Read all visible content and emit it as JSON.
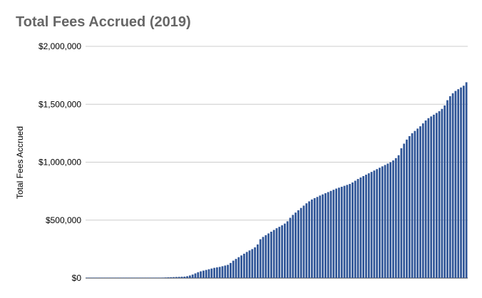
{
  "chart_data": {
    "type": "bar",
    "title": "Total Fees Accrued (2019)",
    "xlabel": "",
    "ylabel": "Total Fees Accrued",
    "ylim": [
      0,
      2000000
    ],
    "yticks": [
      {
        "value": 0,
        "label": "$0"
      },
      {
        "value": 500000,
        "label": "$500,000"
      },
      {
        "value": 1000000,
        "label": "$1,000,000"
      },
      {
        "value": 1500000,
        "label": "$1,500,000"
      },
      {
        "value": 2000000,
        "label": "$2,000,000"
      }
    ],
    "grid": true,
    "legend": "none",
    "bar_color": "#2f5597",
    "grid_color": "#cccccc",
    "values": [
      0,
      0,
      0,
      0,
      0,
      0,
      0,
      0,
      0,
      0,
      0,
      0,
      0,
      0,
      0,
      0,
      0,
      0,
      0,
      0,
      0,
      0,
      0,
      0,
      0,
      2000,
      2500,
      3000,
      4000,
      5000,
      6000,
      7000,
      8000,
      9000,
      10000,
      11000,
      12000,
      16000,
      22000,
      30000,
      40000,
      50000,
      58000,
      64000,
      70000,
      76000,
      82000,
      88000,
      92000,
      96000,
      102000,
      108000,
      114000,
      130000,
      150000,
      165000,
      180000,
      195000,
      210000,
      225000,
      238000,
      250000,
      265000,
      290000,
      335000,
      355000,
      370000,
      385000,
      400000,
      415000,
      430000,
      442000,
      455000,
      470000,
      490000,
      520000,
      545000,
      565000,
      585000,
      605000,
      625000,
      645000,
      662000,
      678000,
      690000,
      700000,
      712000,
      722000,
      732000,
      742000,
      752000,
      762000,
      772000,
      780000,
      788000,
      796000,
      804000,
      812000,
      825000,
      840000,
      855000,
      868000,
      880000,
      892000,
      904000,
      916000,
      928000,
      940000,
      952000,
      964000,
      976000,
      988000,
      1000000,
      1015000,
      1035000,
      1060000,
      1120000,
      1160000,
      1195000,
      1225000,
      1250000,
      1270000,
      1290000,
      1310000,
      1335000,
      1360000,
      1380000,
      1395000,
      1410000,
      1425000,
      1440000,
      1460000,
      1490000,
      1535000,
      1570000,
      1595000,
      1615000,
      1630000,
      1645000,
      1660000,
      1690000
    ]
  }
}
